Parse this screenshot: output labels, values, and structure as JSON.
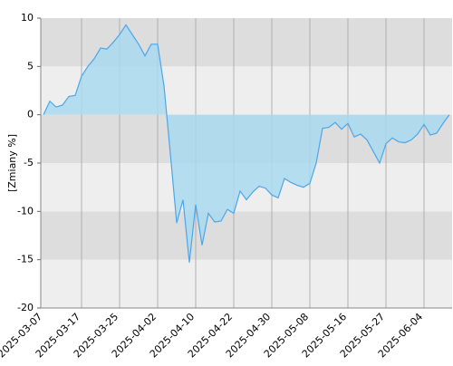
{
  "chart_data": {
    "type": "area",
    "y_label": "[Zmiany %]",
    "categories": [
      "2025-03-07",
      null,
      null,
      null,
      null,
      null,
      "2025-03-17",
      null,
      null,
      null,
      null,
      null,
      "2025-03-25",
      null,
      null,
      null,
      null,
      null,
      "2025-04-02",
      null,
      null,
      null,
      null,
      null,
      "2025-04-10",
      null,
      null,
      null,
      null,
      null,
      "2025-04-22",
      null,
      null,
      null,
      null,
      null,
      "2025-04-30",
      null,
      null,
      null,
      null,
      null,
      "2025-05-08",
      null,
      null,
      null,
      null,
      null,
      "2025-05-16",
      null,
      null,
      null,
      null,
      null,
      "2025-05-27",
      null,
      null,
      null,
      null,
      null,
      "2025-06-04",
      null,
      null,
      null,
      null
    ],
    "values": [
      0,
      1.4,
      0.8,
      1.0,
      1.9,
      2.0,
      4.0,
      5.0,
      5.8,
      6.9,
      6.8,
      7.5,
      8.3,
      9.3,
      8.3,
      7.3,
      6.1,
      7.3,
      7.3,
      3.0,
      -4.0,
      -11.2,
      -8.8,
      -15.3,
      -9.3,
      -13.5,
      -10.2,
      -11.1,
      -11.0,
      -9.8,
      -10.2,
      -7.9,
      -8.8,
      -8.0,
      -7.4,
      -7.6,
      -8.3,
      -8.6,
      -6.6,
      -7.0,
      -7.3,
      -7.5,
      -7.1,
      -5.0,
      -1.4,
      -1.3,
      -0.8,
      -1.5,
      -0.9,
      -2.3,
      -2.0,
      -2.6,
      -3.8,
      -5.0,
      -3.0,
      -2.4,
      -2.8,
      -2.9,
      -2.6,
      -2.0,
      -1.0,
      -2.1,
      -1.9,
      -0.9,
      0.0
    ],
    "color": "#4da6e8",
    "fill_color": "#a9d9ee",
    "band_colors": [
      "#eeeeee",
      "#dddddd"
    ],
    "ylim": [
      -20,
      10
    ],
    "yticks": [
      -20,
      -15,
      -10,
      -5,
      0,
      5,
      10
    ],
    "grid": true
  }
}
